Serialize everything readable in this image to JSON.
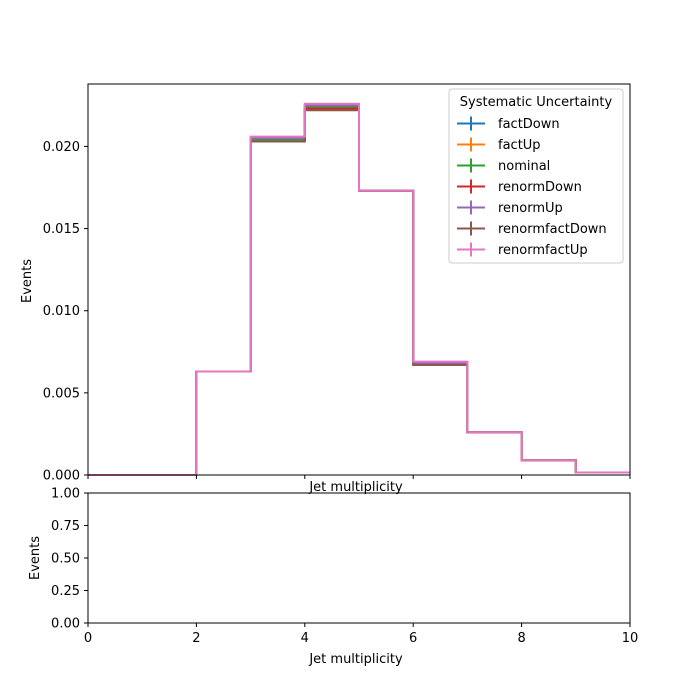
{
  "chart_data": [
    {
      "type": "line",
      "subtype": "step-histogram",
      "title": "",
      "xlabel": "Jet multiplicity",
      "ylabel": "Events",
      "xlim": [
        0,
        10
      ],
      "ylim": [
        0,
        0.0238
      ],
      "bin_edges": [
        0,
        1,
        2,
        3,
        4,
        5,
        6,
        7,
        8,
        9,
        10
      ],
      "yticks": [
        0.0,
        0.005,
        0.01,
        0.015,
        0.02
      ],
      "ytick_labels": [
        "0.000",
        "0.005",
        "0.010",
        "0.015",
        "0.020"
      ],
      "xticks": [
        0,
        2,
        4,
        6,
        8,
        10
      ],
      "legend": {
        "title": "Systematic Uncertainty",
        "location": "upper right"
      },
      "series": [
        {
          "name": "factDown",
          "color": "#1f77b4",
          "values": [
            0,
            0,
            0.0063,
            0.0204,
            0.0224,
            0.0173,
            0.0068,
            0.0026,
            0.0009,
            0.00015
          ]
        },
        {
          "name": "factUp",
          "color": "#ff7f0e",
          "values": [
            0,
            0,
            0.0063,
            0.0205,
            0.0225,
            0.0173,
            0.0068,
            0.0026,
            0.0009,
            0.00015
          ]
        },
        {
          "name": "nominal",
          "color": "#2ca02c",
          "values": [
            0,
            0,
            0.0063,
            0.0204,
            0.0224,
            0.0173,
            0.0068,
            0.0026,
            0.0009,
            0.00015
          ]
        },
        {
          "name": "renormDown",
          "color": "#d62728",
          "values": [
            0,
            0,
            0.0063,
            0.0203,
            0.0223,
            0.0173,
            0.0067,
            0.0026,
            0.0009,
            0.00015
          ]
        },
        {
          "name": "renormUp",
          "color": "#9467bd",
          "values": [
            0,
            0,
            0.0063,
            0.0205,
            0.0225,
            0.0173,
            0.0068,
            0.0026,
            0.0009,
            0.00015
          ]
        },
        {
          "name": "renormfactDown",
          "color": "#8c564b",
          "values": [
            0,
            0,
            0.0063,
            0.0203,
            0.0222,
            0.0173,
            0.0067,
            0.0026,
            0.0009,
            0.00015
          ]
        },
        {
          "name": "renormfactUp",
          "color": "#e377c2",
          "values": [
            0,
            0,
            0.0063,
            0.0206,
            0.0226,
            0.0173,
            0.0069,
            0.0026,
            0.0009,
            0.00015
          ]
        }
      ]
    },
    {
      "type": "line",
      "title": "",
      "xlabel": "Jet multiplicity",
      "ylabel": "Events",
      "xlim": [
        0,
        10
      ],
      "ylim": [
        0,
        1
      ],
      "xticks": [
        0,
        2,
        4,
        6,
        8,
        10
      ],
      "yticks": [
        0,
        0.25,
        0.5,
        0.75,
        1.0
      ],
      "ytick_labels": [
        "0.00",
        "0.25",
        "0.50",
        "0.75",
        "1.00"
      ],
      "series": []
    }
  ]
}
